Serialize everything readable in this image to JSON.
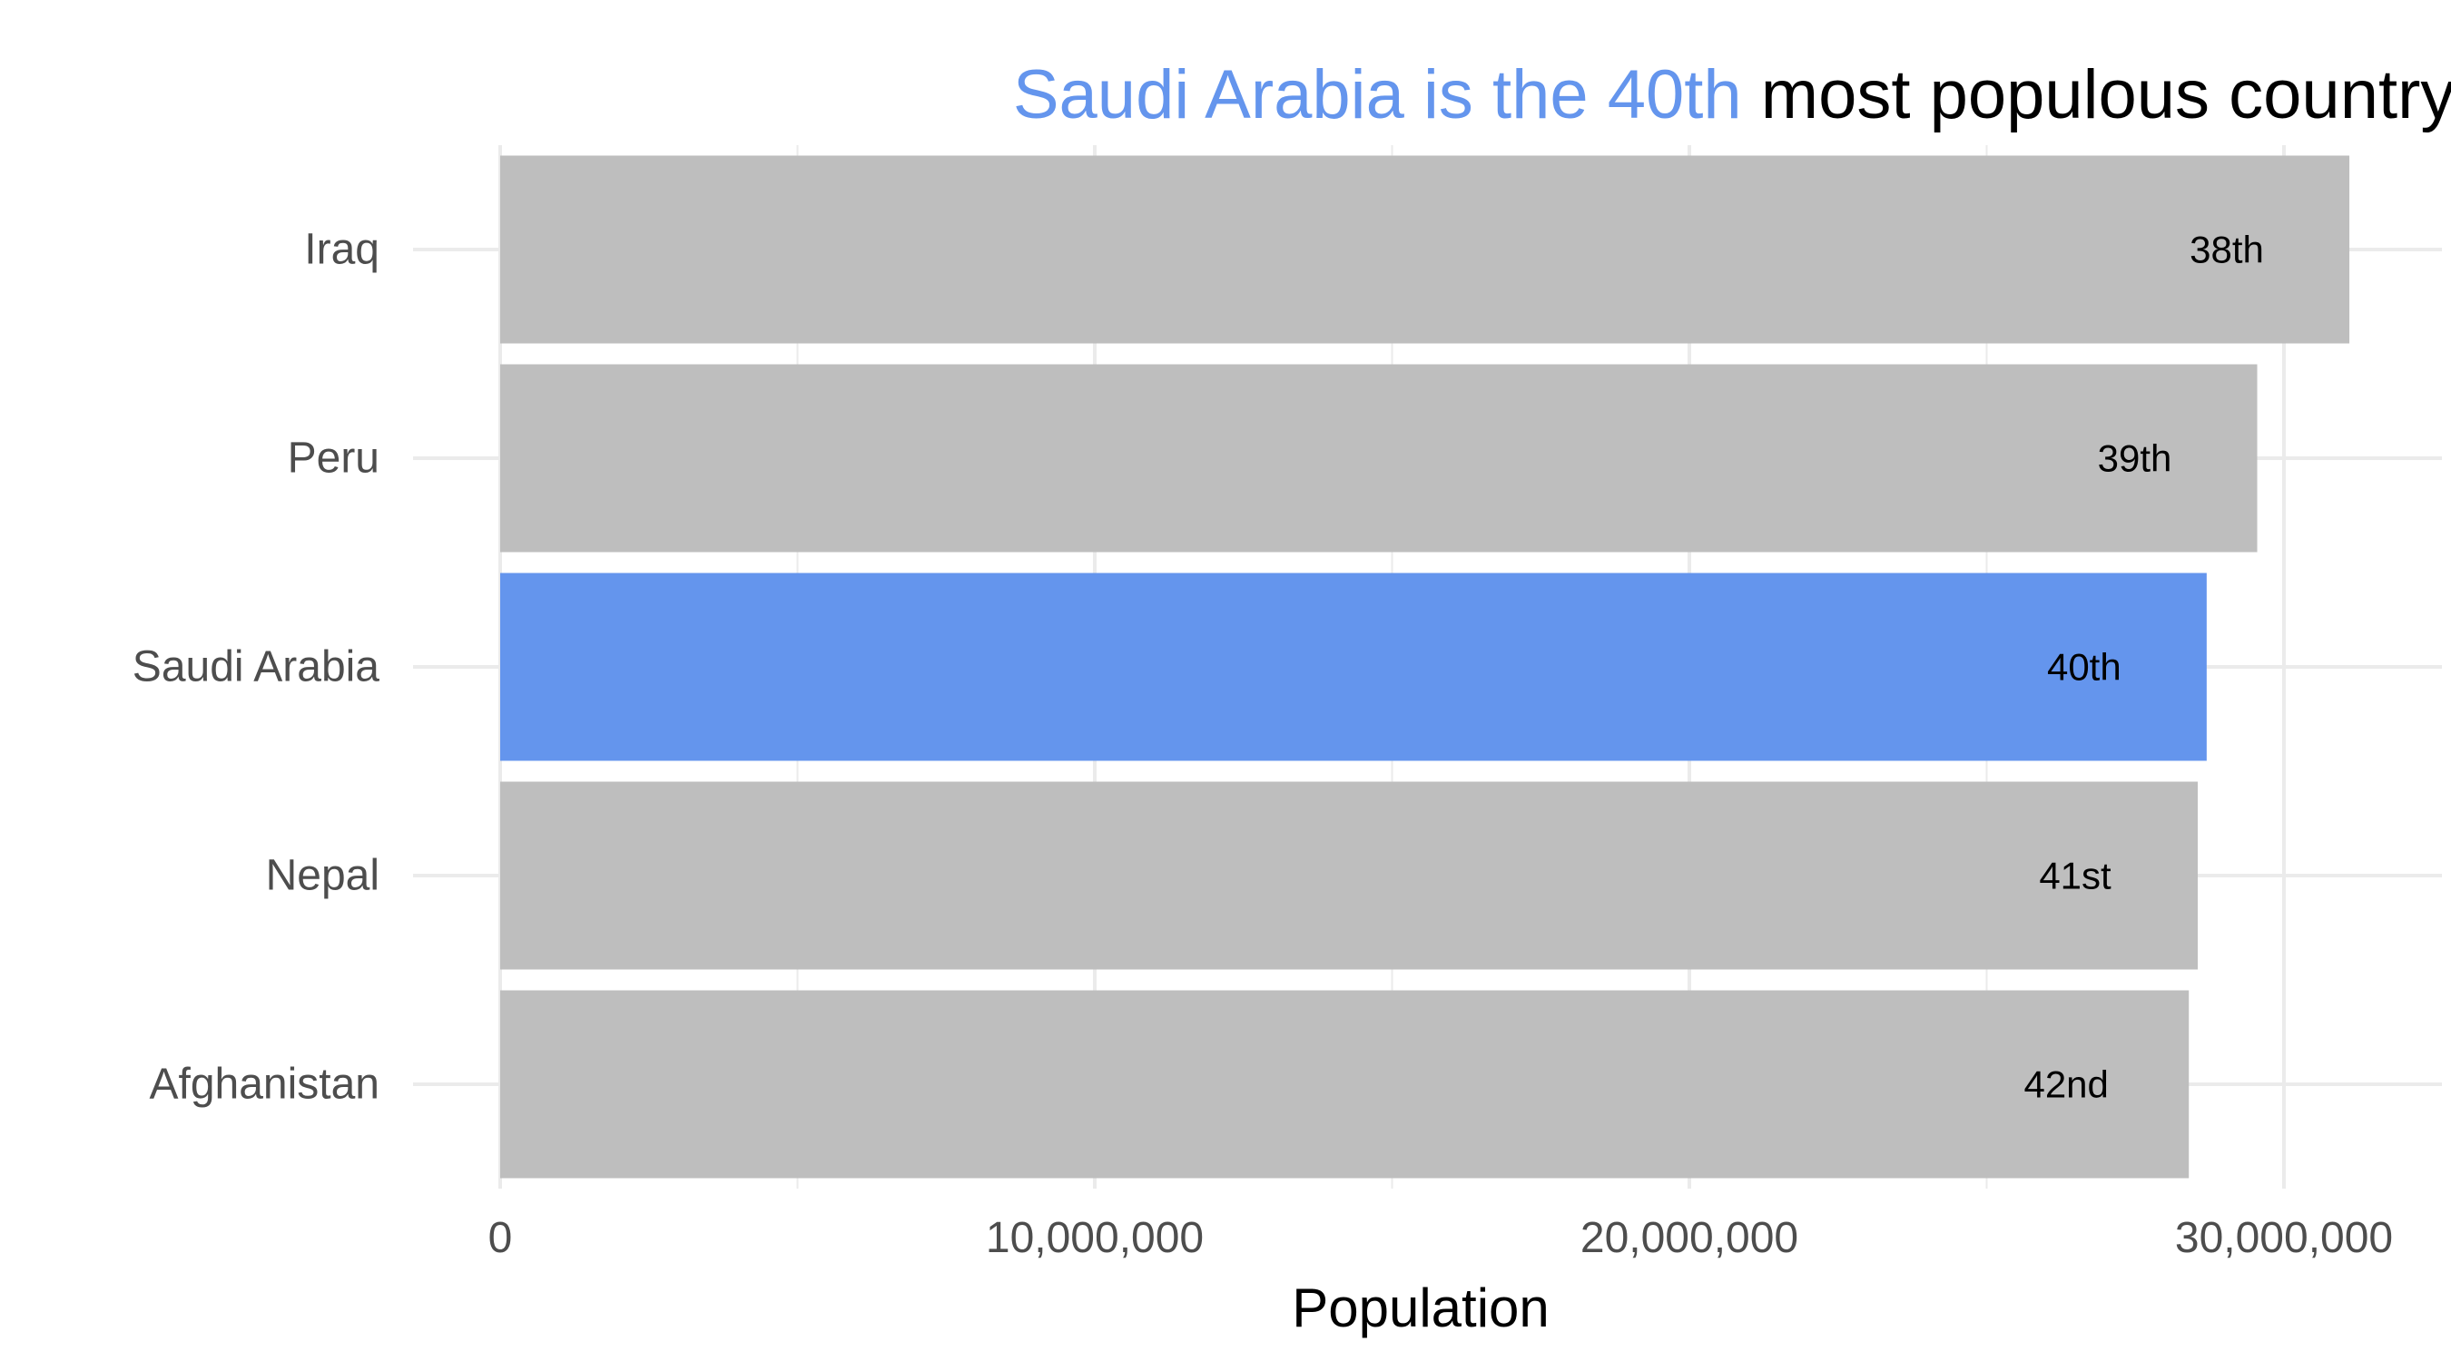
{
  "chart_data": {
    "type": "bar",
    "orientation": "horizontal",
    "title": {
      "highlight": "Saudi Arabia is the 40th",
      "rest": " most populous country in the world"
    },
    "xlabel": "Population",
    "ylabel": "",
    "xlim": [
      0,
      32000000
    ],
    "x_ticks": [
      0,
      10000000,
      20000000,
      30000000
    ],
    "x_tick_labels": [
      "0",
      "10,000,000",
      "20,000,000",
      "30,000,000"
    ],
    "grid": true,
    "categories": [
      "Iraq",
      "Peru",
      "Saudi Arabia",
      "Nepal",
      "Afghanistan"
    ],
    "values": [
      31100000,
      29550000,
      28700000,
      28550000,
      28400000
    ],
    "bar_labels": [
      "38th",
      "39th",
      "40th",
      "41st",
      "42nd"
    ],
    "highlight_category": "Saudi Arabia",
    "colors": {
      "bar": "#bebebe",
      "highlight": "#6495ed",
      "title_highlight": "#6495ed",
      "title_rest": "#000000",
      "grid": "#ebebeb"
    }
  }
}
